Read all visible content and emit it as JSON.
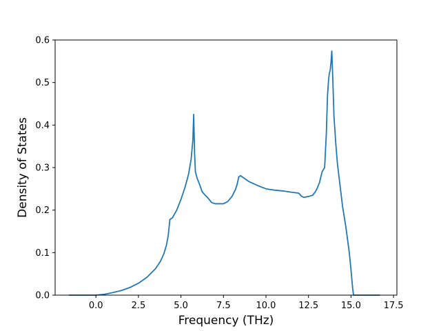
{
  "chart_data": {
    "type": "line",
    "title": "",
    "xlabel": "Frequency (THz)",
    "ylabel": "Density of States",
    "xlim": [
      -2.4,
      17.7
    ],
    "ylim": [
      0,
      0.6
    ],
    "xticks": [
      0,
      2.5,
      5,
      7.5,
      10,
      12.5,
      15,
      17.5
    ],
    "xtick_labels": [
      "0.0",
      "2.5",
      "5.0",
      "7.5",
      "10.0",
      "12.5",
      "15.0",
      "17.5"
    ],
    "yticks": [
      0,
      0.1,
      0.2,
      0.3,
      0.4,
      0.5,
      0.6
    ],
    "ytick_labels": [
      "0.0",
      "0.1",
      "0.2",
      "0.3",
      "0.4",
      "0.5",
      "0.6"
    ],
    "grid": false,
    "legend": "none",
    "line_color": "#1f77b4",
    "series": [
      {
        "x": [
          -1.6,
          0.0,
          0.5,
          1.0,
          1.5,
          2.0,
          2.5,
          3.0,
          3.5,
          3.8,
          4.0,
          4.15,
          4.25,
          4.35,
          4.5,
          4.75,
          5.0,
          5.25,
          5.45,
          5.6,
          5.7,
          5.75,
          5.8,
          5.85,
          5.95,
          6.1,
          6.25,
          6.4,
          6.6,
          6.8,
          7.0,
          7.25,
          7.5,
          7.75,
          8.0,
          8.2,
          8.3,
          8.4,
          8.5,
          8.75,
          9.0,
          9.5,
          10.0,
          10.5,
          11.0,
          11.5,
          11.9,
          12.0,
          12.1,
          12.25,
          12.5,
          12.75,
          12.9,
          13.0,
          13.15,
          13.3,
          13.45,
          13.55,
          13.62,
          13.68,
          13.72,
          13.78,
          13.83,
          13.87,
          13.92,
          14.0,
          14.1,
          14.2,
          14.35,
          14.5,
          14.7,
          14.9,
          15.0,
          15.1,
          15.15,
          15.2,
          16.7
        ],
        "y": [
          0.0,
          0.0,
          0.002,
          0.006,
          0.011,
          0.018,
          0.028,
          0.042,
          0.062,
          0.08,
          0.098,
          0.118,
          0.14,
          0.178,
          0.182,
          0.2,
          0.225,
          0.255,
          0.285,
          0.32,
          0.365,
          0.425,
          0.335,
          0.29,
          0.275,
          0.26,
          0.243,
          0.236,
          0.228,
          0.218,
          0.215,
          0.215,
          0.215,
          0.22,
          0.232,
          0.248,
          0.26,
          0.278,
          0.281,
          0.274,
          0.267,
          0.258,
          0.25,
          0.247,
          0.245,
          0.242,
          0.24,
          0.237,
          0.232,
          0.23,
          0.232,
          0.235,
          0.243,
          0.25,
          0.265,
          0.29,
          0.3,
          0.38,
          0.47,
          0.505,
          0.52,
          0.53,
          0.55,
          0.574,
          0.52,
          0.42,
          0.36,
          0.31,
          0.26,
          0.21,
          0.16,
          0.1,
          0.06,
          0.015,
          0.0,
          0.0,
          0.0
        ]
      }
    ]
  }
}
